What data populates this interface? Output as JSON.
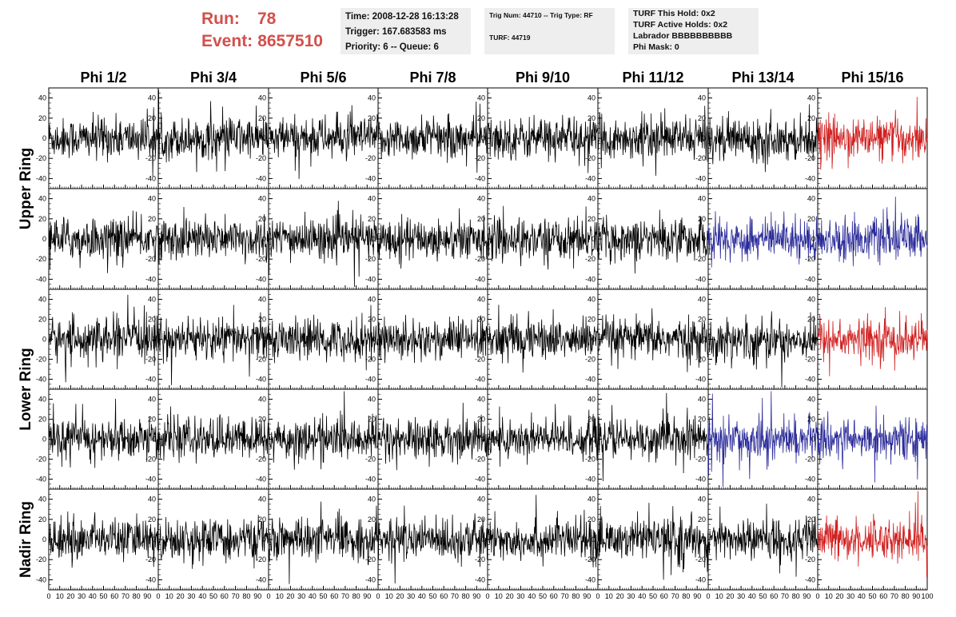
{
  "run_label": "Run:",
  "run_value": "78",
  "event_label": "Event:",
  "event_value": "8657510",
  "info_time": "Time: 2008-12-28 16:13:28",
  "info_trigger": "Trigger: 167.683583 ms",
  "info_priority": "Priority: 6 -- Queue: 6",
  "info_trignum": "Trig Num: 44710 -- Trig Type: RF",
  "info_turf": "TURF: 44719",
  "info_hold": "TURF This Hold: 0x2",
  "info_active": "TURF Active Holds: 0x2",
  "info_labrador": "Labrador BBBBBBBBBB",
  "info_phimask": "Phi Mask: 0",
  "colors": {
    "normal": "#000000",
    "red": "#d02020",
    "blue": "#2a2a9a",
    "title_red": "#d2504b"
  },
  "chart_data": {
    "type": "line",
    "description_columns": [
      "Phi 1/2",
      "Phi 3/4",
      "Phi 5/6",
      "Phi 7/8",
      "Phi 9/10",
      "Phi 11/12",
      "Phi 13/14",
      "Phi 15/16"
    ],
    "row_labels": [
      {
        "text": "Upper Ring",
        "rows": [
          0,
          1
        ]
      },
      {
        "text": "Lower Ring",
        "rows": [
          2,
          3
        ]
      },
      {
        "text": "Nadir Ring",
        "rows": [
          4
        ]
      }
    ],
    "xlim": [
      0,
      100
    ],
    "ylim": [
      -50,
      50
    ],
    "x_ticks": [
      0,
      10,
      20,
      30,
      40,
      50,
      60,
      70,
      80,
      90,
      100
    ],
    "x_tick_labels": [
      "0",
      "10",
      "20",
      "30",
      "40",
      "50",
      "60",
      "70",
      "80",
      "90",
      "100"
    ],
    "y_ticks": [
      -40,
      -20,
      0,
      20,
      40
    ],
    "y_tick_labels": [
      "-40",
      "-20",
      "0",
      "20",
      "40"
    ],
    "panel_colors": [
      [
        "normal",
        "normal",
        "normal",
        "normal",
        "normal",
        "normal",
        "normal",
        "red"
      ],
      [
        "normal",
        "normal",
        "normal",
        "normal",
        "normal",
        "normal",
        "blue",
        "blue"
      ],
      [
        "normal",
        "normal",
        "normal",
        "normal",
        "normal",
        "normal",
        "normal",
        "red"
      ],
      [
        "normal",
        "normal",
        "normal",
        "normal",
        "normal",
        "normal",
        "blue",
        "blue"
      ],
      [
        "normal",
        "normal",
        "normal",
        "normal",
        "normal",
        "normal",
        "normal",
        "red"
      ]
    ],
    "waveform_samples_per_panel": 260,
    "waveform_amplitude": 18
  }
}
